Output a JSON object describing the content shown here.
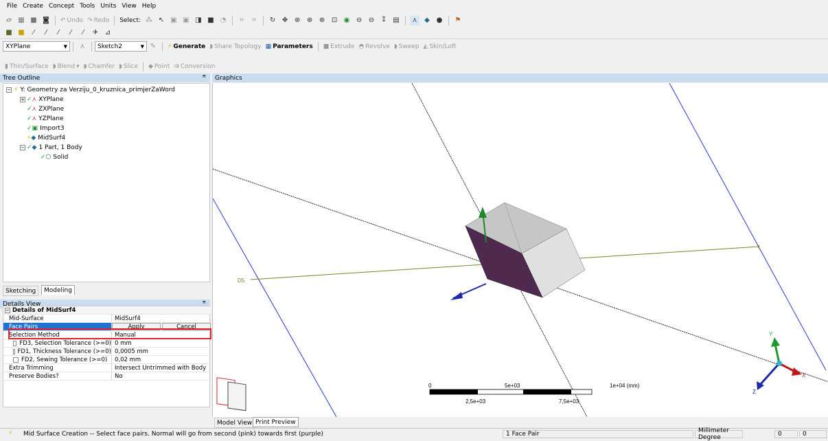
{
  "menu": [
    "File",
    "Create",
    "Concept",
    "Tools",
    "Units",
    "View",
    "Help"
  ],
  "toolbar1": {
    "undo": "Undo",
    "redo": "Redo",
    "select": "Select:"
  },
  "toolbar3": {
    "plane": "XYPlane",
    "sketch": "Sketch2",
    "generate": "Generate",
    "share_topology": "Share Topology",
    "parameters": "Parameters",
    "extrude": "Extrude",
    "revolve": "Revolve",
    "sweep": "Sweep",
    "skinloft": "Skin/Loft"
  },
  "toolbar4": {
    "thin": "Thin/Surface",
    "blend": "Blend",
    "chamfer": "Chamfer",
    "slice": "Slice",
    "point": "Point",
    "conversion": "Conversion"
  },
  "tree": {
    "title": "Tree Outline",
    "pin": "ᵩ",
    "root": "Y: Geometry za Verziju_0_kruznica_primjerZaWord",
    "items": [
      "XYPlane",
      "ZXPlane",
      "YZPlane",
      "Import3",
      "MidSurf4",
      "1 Part, 1 Body",
      "Solid"
    ]
  },
  "tabs": {
    "sketching": "Sketching",
    "modeling": "Modeling"
  },
  "details": {
    "title": "Details View",
    "pin": "ᵩ",
    "group": "Details of MidSurf4",
    "rows": [
      {
        "k": "Mid-Surface",
        "v": "MidSurf4"
      },
      {
        "k": "Face Pairs",
        "apply": "Apply",
        "cancel": "Cancel"
      },
      {
        "k": "Selection Method",
        "v": "Manual"
      },
      {
        "k": "FD3, Selection Tolerance (>=0)",
        "v": "0 mm"
      },
      {
        "k": "FD1, Thickness Tolerance (>=0)",
        "v": "0,0005 mm"
      },
      {
        "k": "FD2, Sewing Tolerance (>=0)",
        "v": "0,02 mm"
      },
      {
        "k": "Extra Trimming",
        "v": "Intersect Untrimmed with Body"
      },
      {
        "k": "Preserve Bodies?",
        "v": "No"
      }
    ]
  },
  "graphics": {
    "title": "Graphics",
    "dim_label": "D5",
    "scale": {
      "t0": "0",
      "t1": "5e+03",
      "t2": "1e+04 (mm)",
      "b1": "2,5e+03",
      "b2": "7,5e+03"
    },
    "triad": {
      "x": "X",
      "y": "Y",
      "z": "Z"
    }
  },
  "bottom_tabs": {
    "model_view": "Model View",
    "print_preview": "Print Preview"
  },
  "status": {
    "message": "Mid Surface Creation -- Select face pairs. Normal will go from second (pink) towards first (purple)",
    "selection": "1 Face Pair",
    "units": "Millimeter Degree",
    "c1": "0",
    "c2": "0"
  },
  "colors": {
    "highlight": "#1e73d2",
    "red_outline": "#e0202e",
    "face_purple": "#4f2a4e",
    "panel_header": "#c9dcf0"
  }
}
